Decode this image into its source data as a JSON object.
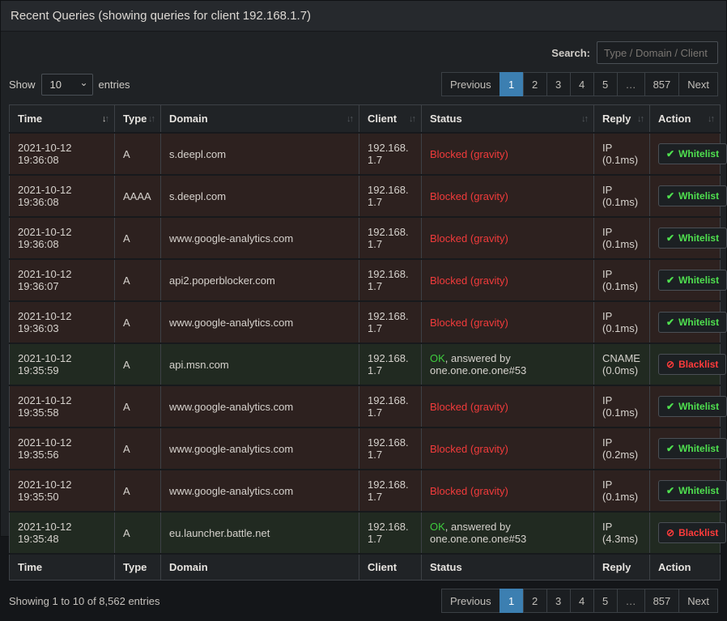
{
  "panel": {
    "title": "Recent Queries (showing queries for client 192.168.1.7)"
  },
  "controls": {
    "show_label": "Show",
    "entries_label": "entries",
    "page_length": "10",
    "search_label": "Search:",
    "search_placeholder": "Type / Domain / Client",
    "search_value": ""
  },
  "pagination": {
    "previous_label": "Previous",
    "next_label": "Next",
    "pages": [
      "1",
      "2",
      "3",
      "4",
      "5",
      "…",
      "857"
    ],
    "active_page": "1"
  },
  "table": {
    "headers": [
      {
        "label": "Time",
        "sort": "desc"
      },
      {
        "label": "Type",
        "sort": "both"
      },
      {
        "label": "Domain",
        "sort": "both"
      },
      {
        "label": "Client",
        "sort": "both"
      },
      {
        "label": "Status",
        "sort": "both"
      },
      {
        "label": "Reply",
        "sort": "both"
      },
      {
        "label": "Action",
        "sort": "both"
      }
    ],
    "footer_headers": [
      "Time",
      "Type",
      "Domain",
      "Client",
      "Status",
      "Reply",
      "Action"
    ],
    "rows": [
      {
        "time": "2021-10-12 19:36:08",
        "type": "A",
        "domain": "s.deepl.com",
        "client": "192.168.1.7",
        "status_main": "Blocked (gravity)",
        "status_rest": "",
        "status_kind": "blocked",
        "reply": "IP (0.1ms)",
        "action_label": "Whitelist",
        "action_icon": "check-icon"
      },
      {
        "time": "2021-10-12 19:36:08",
        "type": "AAAA",
        "domain": "s.deepl.com",
        "client": "192.168.1.7",
        "status_main": "Blocked (gravity)",
        "status_rest": "",
        "status_kind": "blocked",
        "reply": "IP (0.1ms)",
        "action_label": "Whitelist",
        "action_icon": "check-icon"
      },
      {
        "time": "2021-10-12 19:36:08",
        "type": "A",
        "domain": "www.google-analytics.com",
        "client": "192.168.1.7",
        "status_main": "Blocked (gravity)",
        "status_rest": "",
        "status_kind": "blocked",
        "reply": "IP (0.1ms)",
        "action_label": "Whitelist",
        "action_icon": "check-icon"
      },
      {
        "time": "2021-10-12 19:36:07",
        "type": "A",
        "domain": "api2.poperblocker.com",
        "client": "192.168.1.7",
        "status_main": "Blocked (gravity)",
        "status_rest": "",
        "status_kind": "blocked",
        "reply": "IP (0.1ms)",
        "action_label": "Whitelist",
        "action_icon": "check-icon"
      },
      {
        "time": "2021-10-12 19:36:03",
        "type": "A",
        "domain": "www.google-analytics.com",
        "client": "192.168.1.7",
        "status_main": "Blocked (gravity)",
        "status_rest": "",
        "status_kind": "blocked",
        "reply": "IP (0.1ms)",
        "action_label": "Whitelist",
        "action_icon": "check-icon"
      },
      {
        "time": "2021-10-12 19:35:59",
        "type": "A",
        "domain": "api.msn.com",
        "client": "192.168.1.7",
        "status_main": "OK",
        "status_rest": ", answered by one.one.one.one#53",
        "status_kind": "ok",
        "reply": "CNAME (0.0ms)",
        "action_label": "Blacklist",
        "action_icon": "ban-icon"
      },
      {
        "time": "2021-10-12 19:35:58",
        "type": "A",
        "domain": "www.google-analytics.com",
        "client": "192.168.1.7",
        "status_main": "Blocked (gravity)",
        "status_rest": "",
        "status_kind": "blocked",
        "reply": "IP (0.1ms)",
        "action_label": "Whitelist",
        "action_icon": "check-icon"
      },
      {
        "time": "2021-10-12 19:35:56",
        "type": "A",
        "domain": "www.google-analytics.com",
        "client": "192.168.1.7",
        "status_main": "Blocked (gravity)",
        "status_rest": "",
        "status_kind": "blocked",
        "reply": "IP (0.2ms)",
        "action_label": "Whitelist",
        "action_icon": "check-icon"
      },
      {
        "time": "2021-10-12 19:35:50",
        "type": "A",
        "domain": "www.google-analytics.com",
        "client": "192.168.1.7",
        "status_main": "Blocked (gravity)",
        "status_rest": "",
        "status_kind": "blocked",
        "reply": "IP (0.1ms)",
        "action_label": "Whitelist",
        "action_icon": "check-icon"
      },
      {
        "time": "2021-10-12 19:35:48",
        "type": "A",
        "domain": "eu.launcher.battle.net",
        "client": "192.168.1.7",
        "status_main": "OK",
        "status_rest": ", answered by one.one.one.one#53",
        "status_kind": "ok",
        "reply": "IP (4.3ms)",
        "action_label": "Blacklist",
        "action_icon": "ban-icon"
      }
    ]
  },
  "footer": {
    "summary": "Showing 1 to 10 of 8,562 entries"
  },
  "icons": {
    "check-icon": "✔",
    "ban-icon": "⊘",
    "sort-up-icon": "↑",
    "sort-down-icon": "↓",
    "chevron-down-icon": "⌄"
  },
  "colors": {
    "accent_blue": "#3c7fb1",
    "blocked_text": "#f23b3b",
    "ok_text": "#3ecc3e",
    "whitelist_text": "#4fe04f",
    "blacklist_text": "#ff3b3b",
    "blocked_row_bg": "#2d211f",
    "ok_row_bg": "#212a21"
  }
}
